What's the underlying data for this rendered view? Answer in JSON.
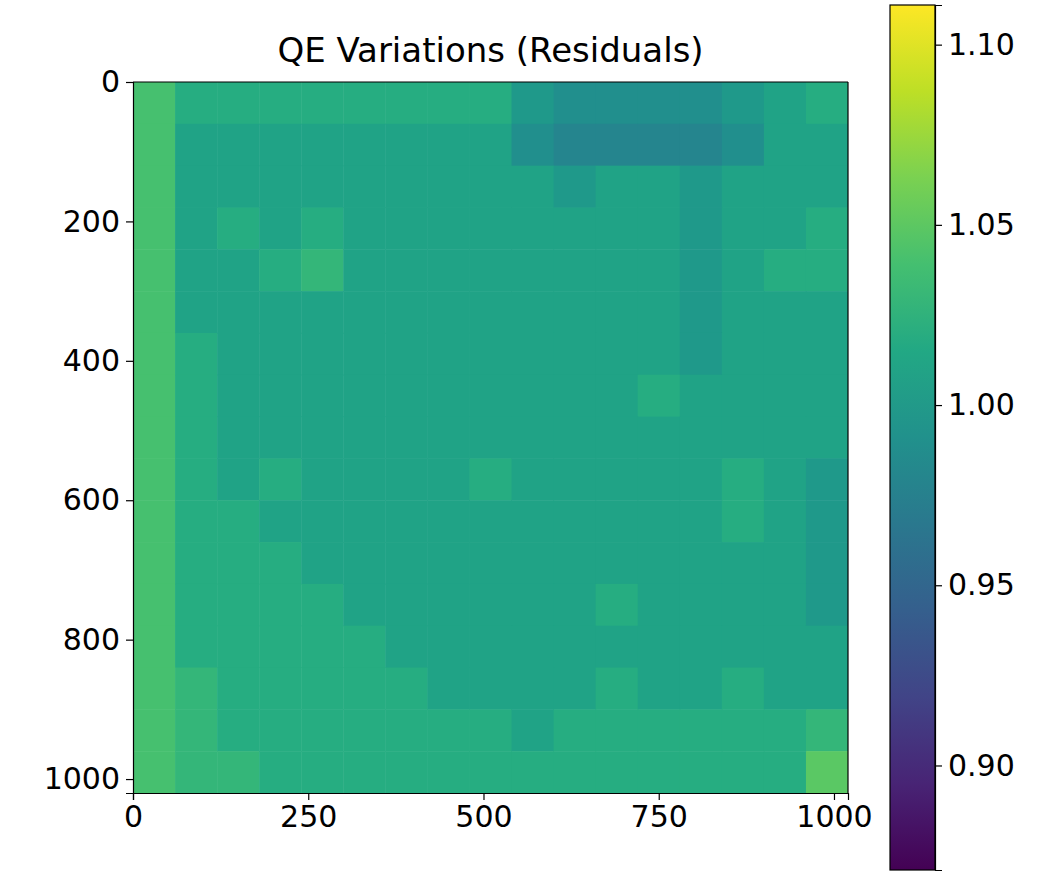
{
  "chart_data": {
    "type": "heatmap",
    "title": "QE Variations (Residuals)",
    "xlim": [
      0,
      1020
    ],
    "ylim": [
      1020,
      0
    ],
    "xticks": [
      0,
      250,
      500,
      750,
      1000
    ],
    "yticks": [
      0,
      200,
      400,
      600,
      800,
      1000
    ],
    "cells": [
      [
        1.04,
        1.02,
        1.02,
        1.02,
        1.02,
        1.02,
        1.02,
        1.02,
        1.02,
        1.0,
        0.99,
        0.99,
        0.99,
        0.99,
        1.0,
        1.01,
        1.02
      ],
      [
        1.04,
        1.01,
        1.01,
        1.01,
        1.01,
        1.01,
        1.01,
        1.01,
        1.01,
        0.99,
        0.98,
        0.98,
        0.98,
        0.98,
        0.99,
        1.01,
        1.01
      ],
      [
        1.04,
        1.01,
        1.01,
        1.01,
        1.01,
        1.01,
        1.01,
        1.01,
        1.01,
        1.01,
        1.0,
        1.01,
        1.01,
        1.0,
        1.01,
        1.01,
        1.01
      ],
      [
        1.04,
        1.01,
        1.02,
        1.01,
        1.02,
        1.01,
        1.01,
        1.01,
        1.01,
        1.01,
        1.01,
        1.01,
        1.01,
        1.0,
        1.01,
        1.01,
        1.02
      ],
      [
        1.04,
        1.01,
        1.01,
        1.02,
        1.03,
        1.01,
        1.01,
        1.01,
        1.01,
        1.01,
        1.01,
        1.01,
        1.01,
        1.0,
        1.01,
        1.02,
        1.02
      ],
      [
        1.04,
        1.01,
        1.01,
        1.01,
        1.01,
        1.01,
        1.01,
        1.01,
        1.01,
        1.01,
        1.01,
        1.01,
        1.01,
        1.0,
        1.01,
        1.01,
        1.01
      ],
      [
        1.04,
        1.02,
        1.01,
        1.01,
        1.01,
        1.01,
        1.01,
        1.01,
        1.01,
        1.01,
        1.01,
        1.01,
        1.01,
        1.0,
        1.01,
        1.01,
        1.01
      ],
      [
        1.04,
        1.02,
        1.01,
        1.01,
        1.01,
        1.01,
        1.01,
        1.01,
        1.01,
        1.01,
        1.01,
        1.01,
        1.02,
        1.01,
        1.01,
        1.01,
        1.01
      ],
      [
        1.04,
        1.02,
        1.01,
        1.01,
        1.01,
        1.01,
        1.01,
        1.01,
        1.01,
        1.01,
        1.01,
        1.01,
        1.01,
        1.01,
        1.01,
        1.01,
        1.01
      ],
      [
        1.04,
        1.02,
        1.01,
        1.02,
        1.01,
        1.01,
        1.01,
        1.01,
        1.02,
        1.01,
        1.01,
        1.01,
        1.01,
        1.01,
        1.02,
        1.01,
        1.0
      ],
      [
        1.04,
        1.02,
        1.02,
        1.01,
        1.01,
        1.01,
        1.01,
        1.01,
        1.01,
        1.01,
        1.01,
        1.01,
        1.01,
        1.01,
        1.02,
        1.01,
        1.0
      ],
      [
        1.04,
        1.02,
        1.02,
        1.02,
        1.01,
        1.01,
        1.01,
        1.01,
        1.01,
        1.01,
        1.01,
        1.01,
        1.01,
        1.01,
        1.01,
        1.01,
        1.0
      ],
      [
        1.04,
        1.02,
        1.02,
        1.02,
        1.02,
        1.01,
        1.01,
        1.01,
        1.01,
        1.01,
        1.01,
        1.02,
        1.01,
        1.01,
        1.01,
        1.01,
        1.0
      ],
      [
        1.04,
        1.02,
        1.02,
        1.02,
        1.02,
        1.02,
        1.01,
        1.01,
        1.01,
        1.01,
        1.01,
        1.01,
        1.01,
        1.01,
        1.01,
        1.01,
        1.01
      ],
      [
        1.04,
        1.03,
        1.02,
        1.02,
        1.02,
        1.02,
        1.02,
        1.01,
        1.01,
        1.01,
        1.01,
        1.02,
        1.01,
        1.01,
        1.02,
        1.01,
        1.01
      ],
      [
        1.04,
        1.03,
        1.02,
        1.02,
        1.02,
        1.02,
        1.02,
        1.02,
        1.02,
        1.01,
        1.02,
        1.02,
        1.02,
        1.02,
        1.02,
        1.02,
        1.03
      ],
      [
        1.04,
        1.03,
        1.03,
        1.02,
        1.02,
        1.02,
        1.02,
        1.02,
        1.02,
        1.02,
        1.02,
        1.02,
        1.02,
        1.02,
        1.02,
        1.02,
        1.05
      ]
    ],
    "colorbar": {
      "range": [
        0.871,
        1.111
      ],
      "ticks": [
        {
          "value": 0.9,
          "label": "0.90"
        },
        0.95,
        {
          "value": 1.0,
          "label": "1.00"
        },
        1.05,
        {
          "value": 1.1,
          "label": "1.10"
        }
      ]
    }
  }
}
